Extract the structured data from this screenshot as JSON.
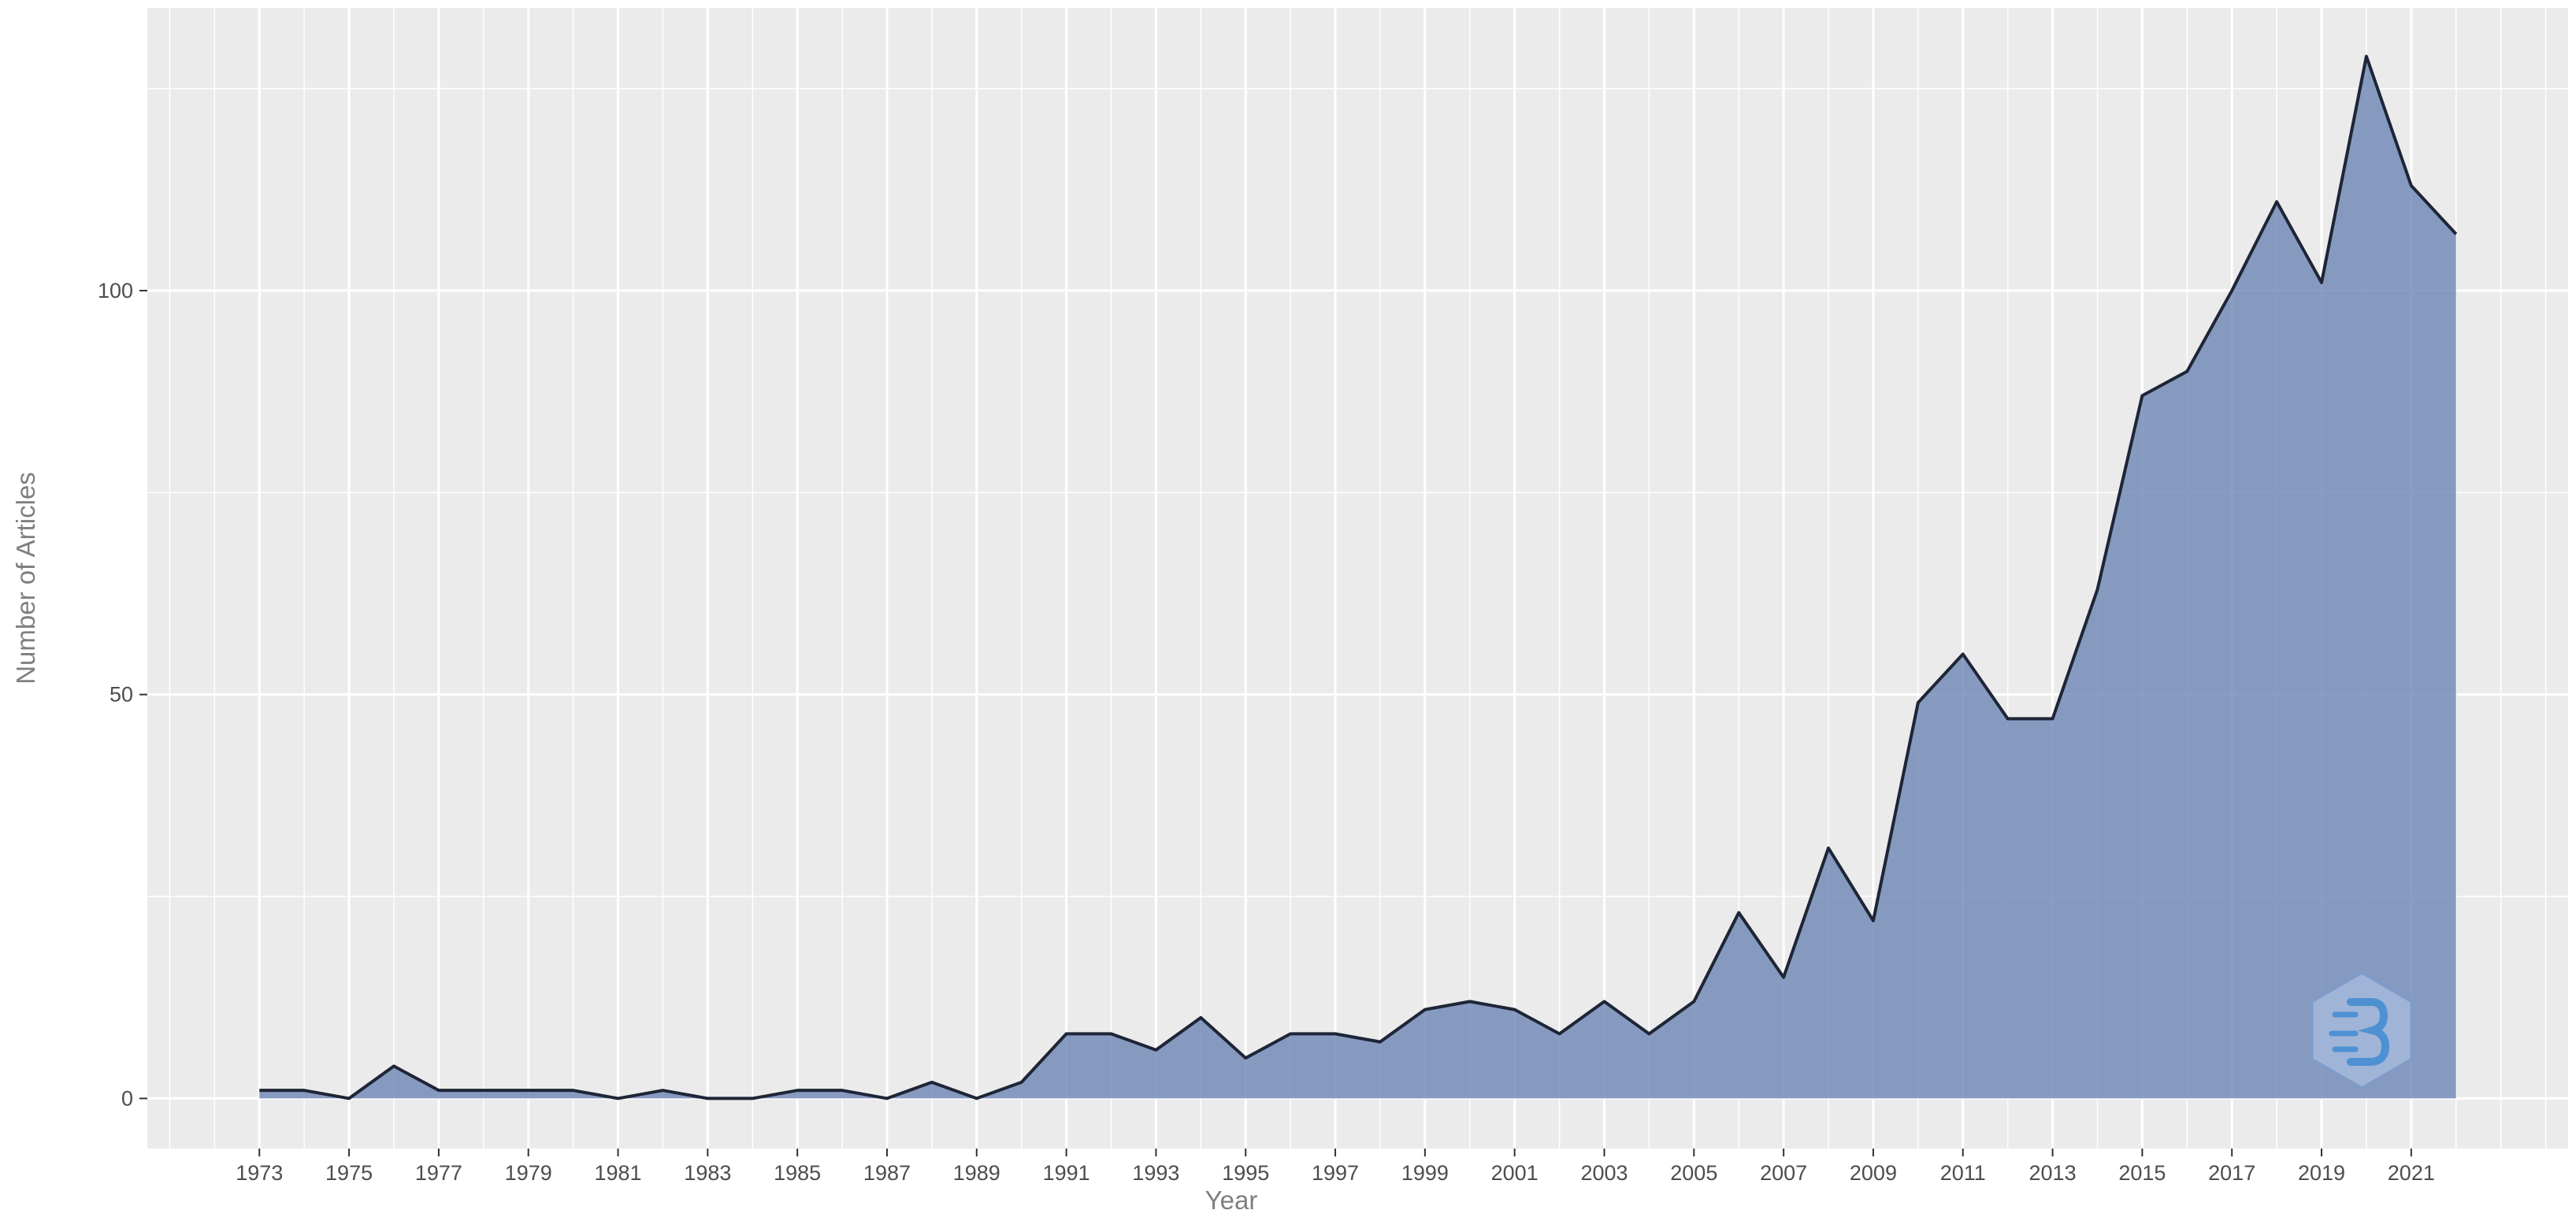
{
  "chart_data": {
    "type": "area",
    "xlabel": "Year",
    "ylabel": "Number of Articles",
    "x": [
      1973,
      1974,
      1975,
      1976,
      1977,
      1978,
      1979,
      1980,
      1981,
      1982,
      1983,
      1984,
      1985,
      1986,
      1987,
      1988,
      1989,
      1990,
      1991,
      1992,
      1993,
      1994,
      1995,
      1996,
      1997,
      1998,
      1999,
      2000,
      2001,
      2002,
      2003,
      2004,
      2005,
      2006,
      2007,
      2008,
      2009,
      2010,
      2011,
      2012,
      2013,
      2014,
      2015,
      2016,
      2017,
      2018,
      2019,
      2020,
      2021,
      2022
    ],
    "values": [
      1,
      1,
      0,
      4,
      1,
      1,
      1,
      1,
      0,
      1,
      0,
      0,
      1,
      1,
      0,
      2,
      0,
      2,
      8,
      8,
      6,
      10,
      5,
      8,
      8,
      7,
      11,
      12,
      11,
      8,
      12,
      8,
      12,
      23,
      15,
      31,
      22,
      49,
      55,
      47,
      47,
      63,
      87,
      90,
      100,
      111,
      101,
      129,
      113,
      107
    ],
    "xlim": [
      1970.5,
      2024.5
    ],
    "ylim": [
      -6.2,
      135
    ],
    "x_ticks": [
      1973,
      1975,
      1977,
      1979,
      1981,
      1983,
      1985,
      1987,
      1989,
      1991,
      1993,
      1995,
      1997,
      1999,
      2001,
      2003,
      2005,
      2007,
      2009,
      2011,
      2013,
      2015,
      2017,
      2019,
      2021
    ],
    "x_tick_labels": [
      "1973",
      "1975",
      "1977",
      "1979",
      "1981",
      "1983",
      "1985",
      "1987",
      "1989",
      "1991",
      "1993",
      "1995",
      "1997",
      "1999",
      "2001",
      "2003",
      "2005",
      "2007",
      "2009",
      "2011",
      "2013",
      "2015",
      "2017",
      "2019",
      "2021"
    ],
    "y_ticks": [
      0,
      50,
      100
    ],
    "y_tick_labels": [
      "0",
      "50",
      "100"
    ],
    "grid": true,
    "colors": {
      "fill": "#6d86b5",
      "line": "#1e2536",
      "panel": "#ebebeb",
      "grid": "#ffffff"
    }
  },
  "logo": {
    "name": "bibliometrix-logo",
    "text": "bibliometrix"
  }
}
